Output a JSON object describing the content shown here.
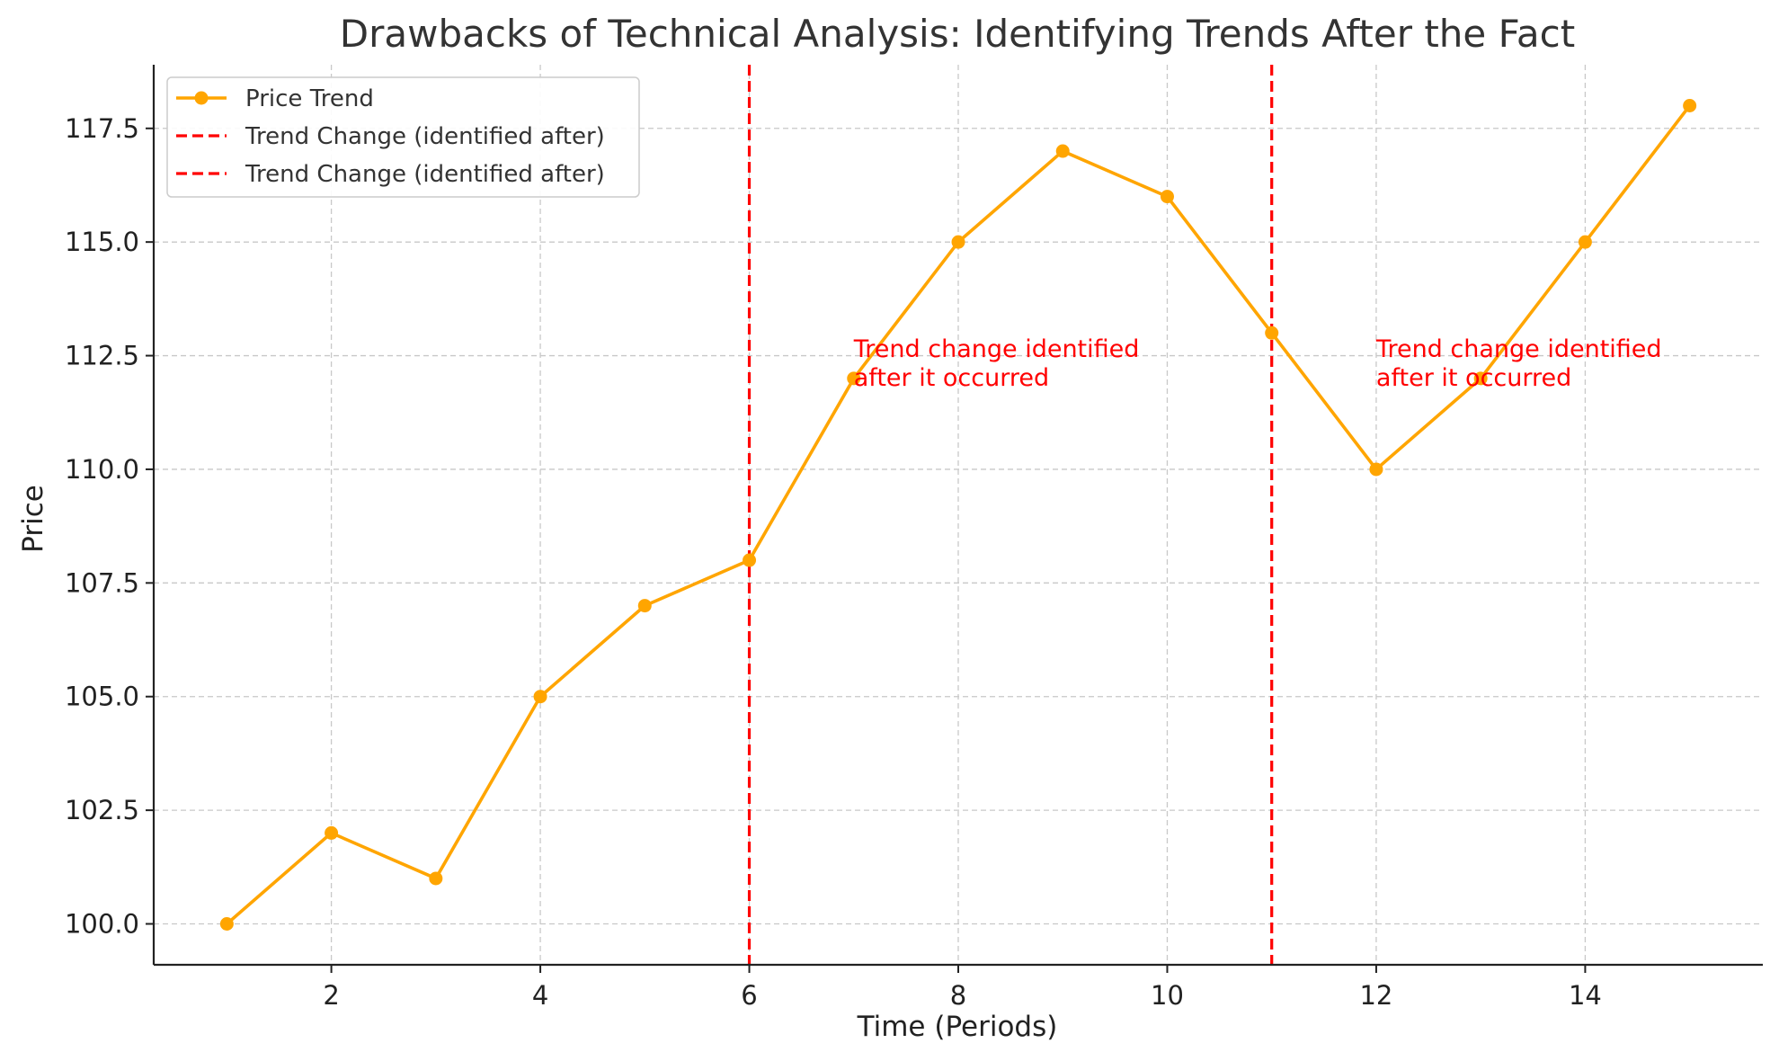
{
  "chart_data": {
    "type": "line",
    "title": "Drawbacks of Technical Analysis: Identifying Trends After the Fact",
    "xlabel": "Time (Periods)",
    "ylabel": "Price",
    "xlim": [
      0.3,
      15.7
    ],
    "ylim": [
      99.1,
      118.9
    ],
    "x_ticks": [
      2,
      4,
      6,
      8,
      10,
      12,
      14
    ],
    "y_ticks": [
      100.0,
      102.5,
      105.0,
      107.5,
      110.0,
      112.5,
      115.0,
      117.5
    ],
    "y_tick_labels": [
      "100.0",
      "102.5",
      "105.0",
      "107.5",
      "110.0",
      "112.5",
      "115.0",
      "117.5"
    ],
    "grid": true,
    "legend_position": "top-left",
    "series": [
      {
        "name": "Price Trend",
        "color": "#FFA500",
        "marker": "circle",
        "x": [
          1,
          2,
          3,
          4,
          5,
          6,
          7,
          8,
          9,
          10,
          11,
          12,
          13,
          14,
          15
        ],
        "y": [
          100,
          102,
          101,
          105,
          107,
          108,
          112,
          115,
          117,
          116,
          113,
          110,
          112,
          115,
          118
        ]
      }
    ],
    "vlines": [
      {
        "name": "Trend Change (identified after)",
        "x": 6,
        "color": "#FF0000",
        "style": "dashed"
      },
      {
        "name": "Trend Change (identified after)",
        "x": 11,
        "color": "#FF0000",
        "style": "dashed"
      }
    ],
    "annotations": [
      {
        "lines": [
          "Trend change identified",
          "after it occurred"
        ],
        "x": 7,
        "y": 112,
        "color": "#FF0000"
      },
      {
        "lines": [
          "Trend change identified",
          "after it occurred"
        ],
        "x": 12,
        "y": 112,
        "color": "#FF0000"
      }
    ]
  }
}
